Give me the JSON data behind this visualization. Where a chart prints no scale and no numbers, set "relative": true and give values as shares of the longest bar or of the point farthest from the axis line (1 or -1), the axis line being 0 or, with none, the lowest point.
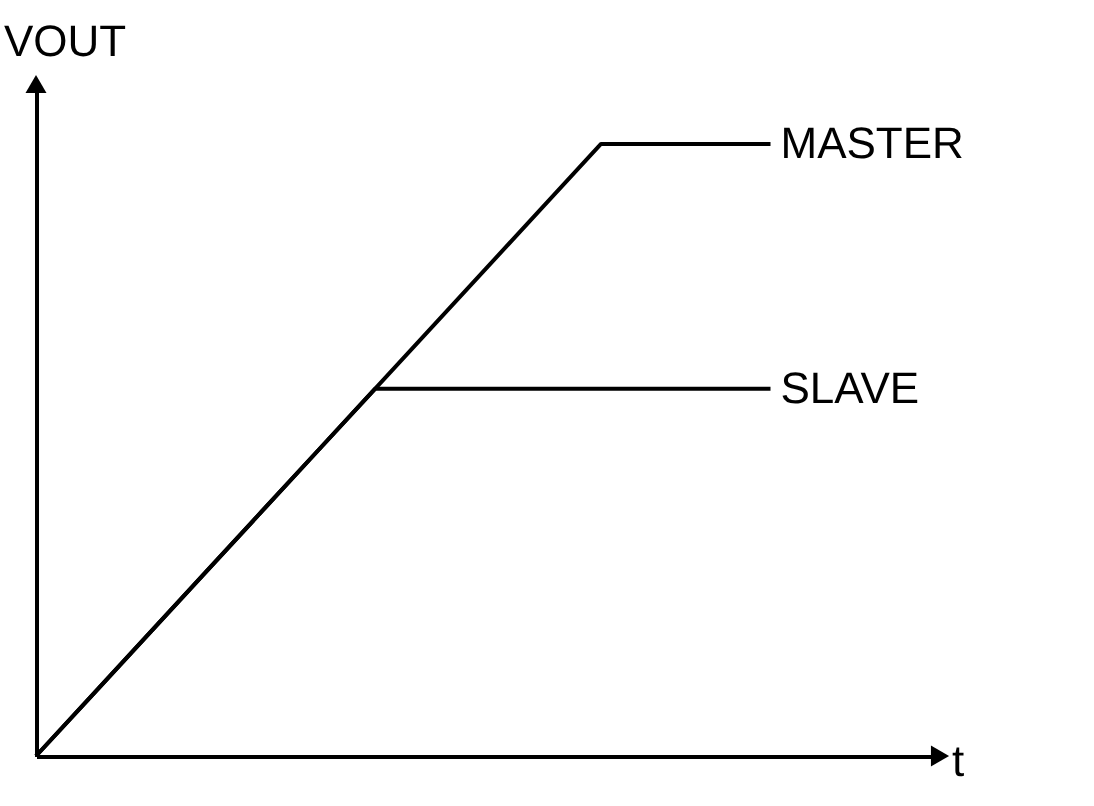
{
  "chart_data": {
    "type": "line",
    "relative": true,
    "xlabel": "t",
    "ylabel": "VOUT",
    "legend": false,
    "tick_labels": false,
    "categories": [
      null,
      null,
      null,
      null,
      null,
      null,
      null,
      null,
      null,
      null,
      null,
      null,
      null,
      null,
      null,
      null,
      null
    ],
    "series": [
      {
        "name": "MASTER",
        "color": "#000000",
        "values": [
          0,
          0.1,
          0.2,
          0.3,
          0.4,
          0.5,
          0.6,
          0.7,
          0.8,
          0.9,
          1,
          1,
          1,
          1,
          null,
          null,
          null
        ]
      },
      {
        "name": "SLAVE",
        "color": "#000000",
        "values": [
          0,
          0.1,
          0.2,
          0.3,
          0.4,
          0.5,
          0.6,
          0.6,
          0.6,
          0.6,
          0.6,
          0.6,
          0.6,
          0.6,
          null,
          null,
          null
        ]
      }
    ]
  }
}
